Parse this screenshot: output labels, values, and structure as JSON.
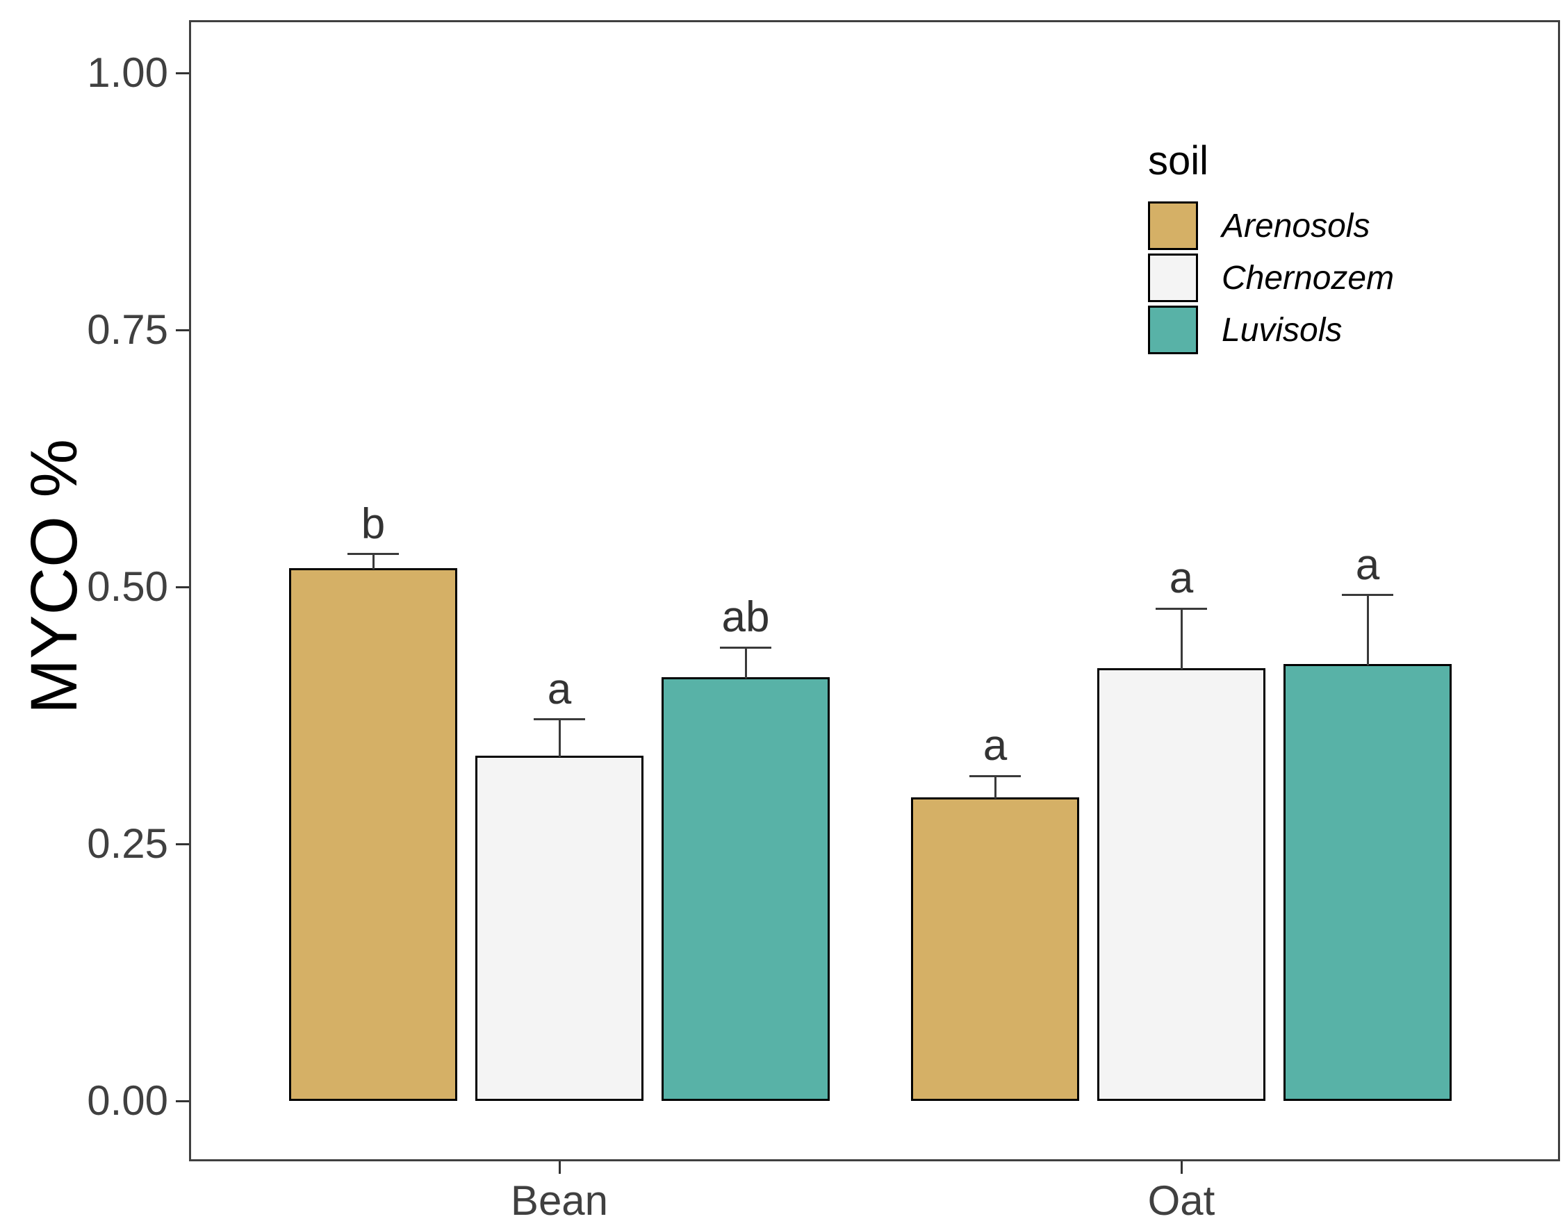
{
  "chart_data": {
    "type": "bar",
    "title": "",
    "xlabel": "",
    "ylabel": "MYCO %",
    "categories": [
      "Bean",
      "Oat"
    ],
    "series": [
      {
        "name": "Arenosols",
        "color": "#D5B066",
        "values": [
          0.518,
          0.295
        ],
        "upper": [
          0.532,
          0.316
        ],
        "letters": [
          "b",
          "a"
        ]
      },
      {
        "name": "Chernozem",
        "color": "#F4F4F4",
        "values": [
          0.336,
          0.421
        ],
        "upper": [
          0.371,
          0.479
        ],
        "letters": [
          "a",
          "a"
        ]
      },
      {
        "name": "Luvisols",
        "color": "#58B2A7",
        "values": [
          0.412,
          0.425
        ],
        "upper": [
          0.441,
          0.492
        ],
        "letters": [
          "ab",
          "a"
        ]
      }
    ],
    "ylim": [
      0,
      1.05
    ],
    "yticks": [
      0,
      0.25,
      0.5,
      0.75,
      1.0
    ],
    "ytick_labels": [
      "0.00",
      "0.25",
      "0.50",
      "0.75",
      "1.00"
    ],
    "grid": false,
    "legend_title": "soil",
    "legend_position": "inside-top-right",
    "error_bars": "upper whisker with cap",
    "bar_border_color": "#000000",
    "axis_text_color": "#404040"
  }
}
